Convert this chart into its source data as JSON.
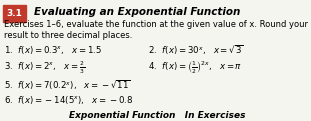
{
  "title_box_text": "3.1",
  "title_text": "Evaluating an Exponential Function",
  "subtitle": "Exercises 1–6, evaluate the function at the given value of x. Round your result to three decimal places.",
  "line1_left": "1.  $f(x) = 0.3^x$,   $x = 1.5$",
  "line1_right": "2.  $f(x) = 30^x$,   $x = \\sqrt{3}$",
  "line2_left": "3.  $f(x) = 2^x$,   $x = \\frac{2}{3}$",
  "line2_right": "4.  $f(x) = \\left(\\frac{1}{2}\\right)^{2x}$,   $x = \\pi$",
  "line3_left": "5.  $f(x) = 7(0.2^x)$,   $x = -\\sqrt{11}$",
  "line4_left": "6.  $f(x) = -14(5^x)$,   $x = -0.8$",
  "footer": "Exponential Function   In Exercises",
  "bg_color": "#f5f5f0",
  "box_color": "#c0392b",
  "box_text_color": "#ffffff",
  "text_color": "#000000",
  "title_fontsize": 7.5,
  "body_fontsize": 6.2,
  "footer_fontsize": 6.5
}
